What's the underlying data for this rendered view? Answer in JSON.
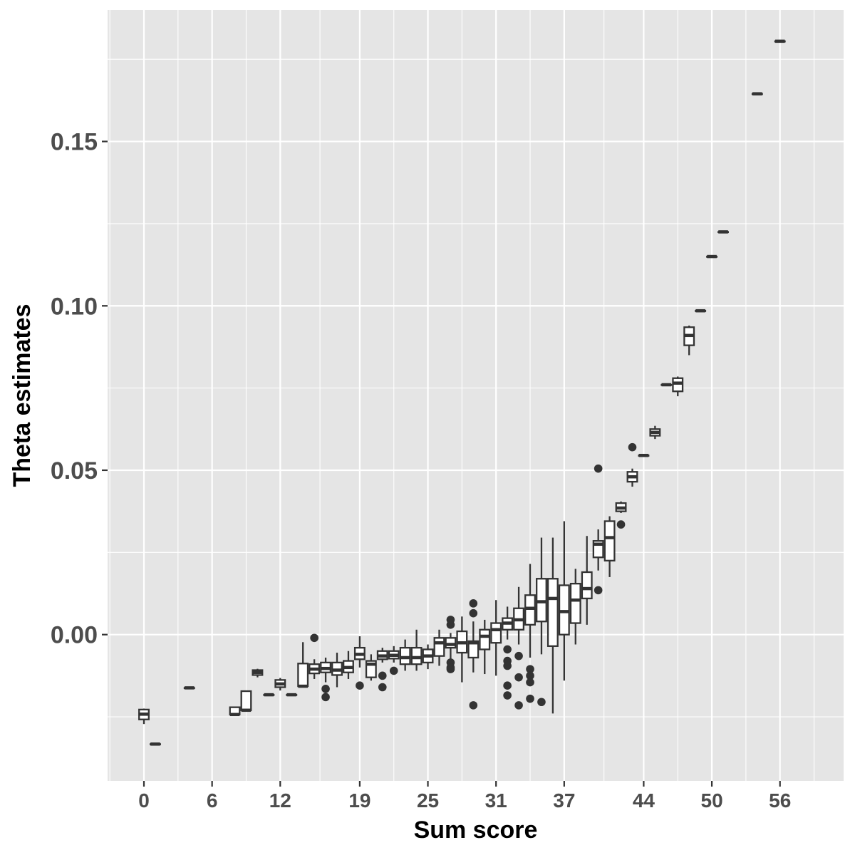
{
  "chart_data": {
    "type": "boxplot",
    "title": "",
    "xlabel": "Sum score",
    "ylabel": "Theta estimates",
    "xlim": [
      -3.2,
      61.6
    ],
    "ylim": [
      -0.0445,
      0.19
    ],
    "x_ticks": [
      0,
      6,
      12,
      19,
      25,
      31,
      37,
      44,
      50,
      56
    ],
    "y_ticks": [
      0.0,
      0.05,
      0.1,
      0.15
    ],
    "y_tick_labels": [
      "0.00",
      "0.05",
      "0.10",
      "0.15"
    ],
    "colors": {
      "panel": "#e5e5e5",
      "grid": "#ffffff",
      "box_fill": "#ffffff",
      "box_line": "#333333",
      "outlier": "#333333",
      "tick_text": "#4d4d4d"
    },
    "boxes": [
      {
        "x": 0,
        "q1": -0.0258,
        "med": -0.0242,
        "q3": -0.0228,
        "lo": -0.0272,
        "hi": -0.0225
      },
      {
        "x": 1,
        "q1": -0.0333,
        "med": -0.0333,
        "q3": -0.0333,
        "lo": -0.0333,
        "hi": -0.0333
      },
      {
        "x": 4,
        "q1": -0.0162,
        "med": -0.0162,
        "q3": -0.0162,
        "lo": -0.0162,
        "hi": -0.0162
      },
      {
        "x": 8,
        "q1": -0.0243,
        "med": -0.0243,
        "q3": -0.0221,
        "lo": -0.0243,
        "hi": -0.0221
      },
      {
        "x": 9,
        "q1": -0.023,
        "med": -0.023,
        "q3": -0.0172,
        "lo": -0.023,
        "hi": -0.0172
      },
      {
        "x": 10,
        "q1": -0.0123,
        "med": -0.0115,
        "q3": -0.0108,
        "lo": -0.013,
        "hi": -0.0104
      },
      {
        "x": 11,
        "q1": -0.0183,
        "med": -0.0183,
        "q3": -0.0183,
        "lo": -0.0183,
        "hi": -0.0183
      },
      {
        "x": 12,
        "q1": -0.016,
        "med": -0.015,
        "q3": -0.0138,
        "lo": -0.017,
        "hi": -0.0132
      },
      {
        "x": 13,
        "q1": -0.0183,
        "med": -0.0183,
        "q3": -0.0183,
        "lo": -0.0183,
        "hi": -0.0183
      },
      {
        "x": 14,
        "q1": -0.0157,
        "med": -0.0157,
        "q3": -0.0088,
        "lo": -0.016,
        "hi": -0.0023
      },
      {
        "x": 15,
        "q1": -0.0118,
        "med": -0.0105,
        "q3": -0.009,
        "lo": -0.0135,
        "hi": -0.0075,
        "outliers": [
          -0.001
        ]
      },
      {
        "x": 16,
        "q1": -0.0115,
        "med": -0.0103,
        "q3": -0.0085,
        "lo": -0.0145,
        "hi": -0.007,
        "outliers": [
          -0.0165,
          -0.019
        ]
      },
      {
        "x": 17,
        "q1": -0.0123,
        "med": -0.0108,
        "q3": -0.0085,
        "lo": -0.016,
        "hi": -0.0055
      },
      {
        "x": 18,
        "q1": -0.0115,
        "med": -0.01,
        "q3": -0.008,
        "lo": -0.0135,
        "hi": -0.005
      },
      {
        "x": 19,
        "q1": -0.0075,
        "med": -0.006,
        "q3": -0.004,
        "lo": -0.01,
        "hi": -0.0005,
        "outliers": [
          -0.0155
        ]
      },
      {
        "x": 20,
        "q1": -0.013,
        "med": -0.009,
        "q3": -0.008,
        "lo": -0.014,
        "hi": -0.006
      },
      {
        "x": 21,
        "q1": -0.0075,
        "med": -0.0065,
        "q3": -0.005,
        "lo": -0.0085,
        "hi": -0.004,
        "outliers": [
          -0.0125,
          -0.016
        ]
      },
      {
        "x": 22,
        "q1": -0.0073,
        "med": -0.0063,
        "q3": -0.005,
        "lo": -0.0085,
        "hi": -0.0035,
        "outliers": [
          -0.011
        ]
      },
      {
        "x": 23,
        "q1": -0.009,
        "med": -0.007,
        "q3": -0.004,
        "lo": -0.011,
        "hi": -0.0015
      },
      {
        "x": 24,
        "q1": -0.009,
        "med": -0.007,
        "q3": -0.004,
        "lo": -0.011,
        "hi": 0.0015
      },
      {
        "x": 25,
        "q1": -0.0085,
        "med": -0.0065,
        "q3": -0.0045,
        "lo": -0.0105,
        "hi": -0.003
      },
      {
        "x": 26,
        "q1": -0.0065,
        "med": -0.0025,
        "q3": -0.001,
        "lo": -0.0095,
        "hi": 0.0015
      },
      {
        "x": 27,
        "q1": -0.004,
        "med": -0.003,
        "q3": -0.001,
        "lo": -0.0075,
        "hi": 0.0005,
        "outliers": [
          0.0045,
          0.003,
          -0.0085,
          -0.01,
          -0.0105
        ]
      },
      {
        "x": 28,
        "q1": -0.0055,
        "med": -0.0025,
        "q3": 0.001,
        "lo": -0.0145,
        "hi": 0.0055
      },
      {
        "x": 29,
        "q1": -0.007,
        "med": -0.0025,
        "q3": -0.002,
        "lo": -0.0115,
        "hi": 0.004,
        "outliers": [
          0.0095,
          0.0065,
          -0.0215
        ]
      },
      {
        "x": 30,
        "q1": -0.0045,
        "med": -0.0005,
        "q3": 0.0015,
        "lo": -0.012,
        "hi": 0.0045
      },
      {
        "x": 31,
        "q1": -0.0025,
        "med": 0.0015,
        "q3": 0.0035,
        "lo": -0.0125,
        "hi": 0.0105
      },
      {
        "x": 32,
        "q1": 0.0015,
        "med": 0.0035,
        "q3": 0.005,
        "lo": -0.0015,
        "hi": 0.0085,
        "outliers": [
          -0.0045,
          -0.008,
          -0.0095,
          -0.0155,
          -0.0185
        ]
      },
      {
        "x": 33,
        "q1": 0.0015,
        "med": 0.0045,
        "q3": 0.008,
        "lo": -0.003,
        "hi": 0.0145,
        "outliers": [
          -0.0065,
          -0.013,
          -0.0215
        ]
      },
      {
        "x": 34,
        "q1": 0.003,
        "med": 0.008,
        "q3": 0.012,
        "lo": -0.007,
        "hi": 0.0215,
        "outliers": [
          -0.0105,
          -0.0125,
          -0.0145,
          -0.0195
        ]
      },
      {
        "x": 35,
        "q1": 0.004,
        "med": 0.01,
        "q3": 0.017,
        "lo": -0.006,
        "hi": 0.0295,
        "outliers": [
          -0.0205
        ]
      },
      {
        "x": 36,
        "q1": -0.0035,
        "med": 0.011,
        "q3": 0.017,
        "lo": -0.024,
        "hi": 0.0295
      },
      {
        "x": 37,
        "q1": 0.0,
        "med": 0.007,
        "q3": 0.015,
        "lo": -0.014,
        "hi": 0.0345
      },
      {
        "x": 38,
        "q1": 0.0035,
        "med": 0.0105,
        "q3": 0.0155,
        "lo": -0.003,
        "hi": 0.02
      },
      {
        "x": 39,
        "q1": 0.011,
        "med": 0.014,
        "q3": 0.019,
        "lo": 0.003,
        "hi": 0.03
      },
      {
        "x": 40,
        "q1": 0.0235,
        "med": 0.0275,
        "q3": 0.0285,
        "lo": 0.0195,
        "hi": 0.032,
        "outliers": [
          0.0505,
          0.0135
        ]
      },
      {
        "x": 41,
        "q1": 0.0225,
        "med": 0.0295,
        "q3": 0.0345,
        "lo": 0.0175,
        "hi": 0.036
      },
      {
        "x": 42,
        "q1": 0.0375,
        "med": 0.0385,
        "q3": 0.04,
        "lo": 0.037,
        "hi": 0.0405,
        "outliers": [
          0.0335
        ]
      },
      {
        "x": 43,
        "q1": 0.0465,
        "med": 0.048,
        "q3": 0.0495,
        "lo": 0.045,
        "hi": 0.0505,
        "outliers": [
          0.057
        ]
      },
      {
        "x": 44,
        "q1": 0.0545,
        "med": 0.0545,
        "q3": 0.0545,
        "lo": 0.0545,
        "hi": 0.0545
      },
      {
        "x": 45,
        "q1": 0.0605,
        "med": 0.0615,
        "q3": 0.0625,
        "lo": 0.0595,
        "hi": 0.0635
      },
      {
        "x": 46,
        "q1": 0.076,
        "med": 0.076,
        "q3": 0.076,
        "lo": 0.076,
        "hi": 0.076
      },
      {
        "x": 47,
        "q1": 0.074,
        "med": 0.0765,
        "q3": 0.078,
        "lo": 0.0725,
        "hi": 0.0785
      },
      {
        "x": 48,
        "q1": 0.088,
        "med": 0.091,
        "q3": 0.0935,
        "lo": 0.085,
        "hi": 0.094
      },
      {
        "x": 49,
        "q1": 0.0985,
        "med": 0.0985,
        "q3": 0.0985,
        "lo": 0.0985,
        "hi": 0.0985
      },
      {
        "x": 50,
        "q1": 0.115,
        "med": 0.115,
        "q3": 0.115,
        "lo": 0.115,
        "hi": 0.115
      },
      {
        "x": 51,
        "q1": 0.1225,
        "med": 0.1225,
        "q3": 0.1225,
        "lo": 0.1225,
        "hi": 0.1225
      },
      {
        "x": 54,
        "q1": 0.1645,
        "med": 0.1645,
        "q3": 0.1645,
        "lo": 0.1645,
        "hi": 0.1645
      },
      {
        "x": 56,
        "q1": 0.1805,
        "med": 0.1805,
        "q3": 0.1805,
        "lo": 0.1805,
        "hi": 0.1805
      }
    ]
  }
}
